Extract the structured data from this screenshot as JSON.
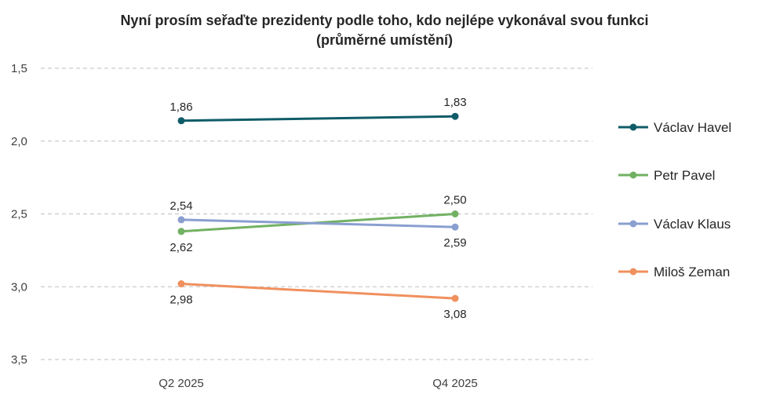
{
  "title_line1": "Nyní prosím seřaďte prezidenty podle toho, kdo nejlépe vykonával svou funkci",
  "title_line2": "(průměrné umístění)",
  "chart_data": {
    "type": "line",
    "title": "Nyní prosím seřaďte prezidenty podle toho, kdo nejlépe vykonával svou funkci (průměrné umístění)",
    "categories": [
      "Q2 2025",
      "Q4 2025"
    ],
    "y_inverted": true,
    "ylim": [
      1.5,
      3.5
    ],
    "yticks": [
      "1,5",
      "2,0",
      "2,5",
      "3,0",
      "3,5"
    ],
    "grid": true,
    "legend_position": "right",
    "series": [
      {
        "name": "Václav Havel",
        "values": [
          1.86,
          1.83
        ],
        "labels": [
          "1,86",
          "1,83"
        ],
        "color": "#0f5c68",
        "label_pos": [
          "above",
          "above"
        ]
      },
      {
        "name": "Petr Pavel",
        "values": [
          2.62,
          2.5
        ],
        "labels": [
          "2,62",
          "2,50"
        ],
        "color": "#72b163",
        "label_pos": [
          "below",
          "above"
        ]
      },
      {
        "name": "Václav Klaus",
        "values": [
          2.54,
          2.59
        ],
        "labels": [
          "2,54",
          "2,59"
        ],
        "color": "#8a9fd0",
        "label_pos": [
          "above",
          "below"
        ]
      },
      {
        "name": "Miloš Zeman",
        "values": [
          2.98,
          3.08
        ],
        "labels": [
          "2,98",
          "3,08"
        ],
        "color": "#f0905e",
        "label_pos": [
          "below",
          "below"
        ]
      }
    ]
  }
}
